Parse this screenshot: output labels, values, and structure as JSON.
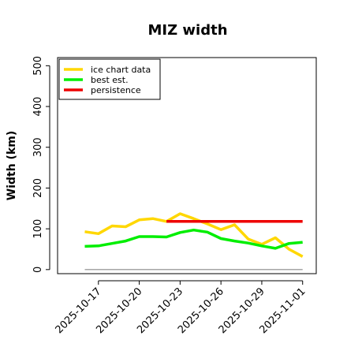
{
  "chart_data": {
    "type": "line",
    "title": "MIZ width",
    "xlabel": "",
    "ylabel": "Width (km)",
    "ylim": [
      -10,
      520
    ],
    "yticks": [
      0,
      100,
      200,
      300,
      400,
      500
    ],
    "xlim": [
      "2025-10-14",
      "2025-11-02"
    ],
    "xticks": [
      "2025-10-17",
      "2025-10-20",
      "2025-10-23",
      "2025-10-26",
      "2025-10-29",
      "2025-11-01"
    ],
    "grid": false,
    "legend_position": "top-left",
    "legend": [
      {
        "label": "ice chart data",
        "color": "#ffd700"
      },
      {
        "label": "best est.",
        "color": "#00ee00"
      },
      {
        "label": "persistence",
        "color": "#ee0000"
      }
    ],
    "baseline": {
      "y": 0,
      "x_start": "2025-10-16",
      "x_end": "2025-11-01",
      "color": "#888888"
    },
    "series": [
      {
        "name": "ice chart data",
        "color": "#ffd700",
        "x": [
          "2025-10-16",
          "2025-10-17",
          "2025-10-18",
          "2025-10-19",
          "2025-10-20",
          "2025-10-21",
          "2025-10-22",
          "2025-10-23",
          "2025-10-24",
          "2025-10-25",
          "2025-10-26",
          "2025-10-27",
          "2025-10-28",
          "2025-10-29",
          "2025-10-30",
          "2025-10-31",
          "2025-11-01"
        ],
        "values": [
          93,
          88,
          107,
          105,
          122,
          125,
          118,
          137,
          125,
          112,
          98,
          110,
          75,
          62,
          78,
          50,
          32
        ]
      },
      {
        "name": "best est.",
        "color": "#00ee00",
        "x": [
          "2025-10-16",
          "2025-10-17",
          "2025-10-18",
          "2025-10-19",
          "2025-10-20",
          "2025-10-21",
          "2025-10-22",
          "2025-10-23",
          "2025-10-24",
          "2025-10-25",
          "2025-10-26",
          "2025-10-27",
          "2025-10-28",
          "2025-10-29",
          "2025-10-30",
          "2025-10-31",
          "2025-11-01"
        ],
        "values": [
          57,
          58,
          64,
          70,
          81,
          81,
          80,
          91,
          97,
          92,
          76,
          70,
          65,
          58,
          52,
          64,
          67
        ]
      },
      {
        "name": "persistence",
        "color": "#ee0000",
        "x": [
          "2025-10-22",
          "2025-11-01"
        ],
        "values": [
          118,
          118
        ]
      }
    ]
  }
}
